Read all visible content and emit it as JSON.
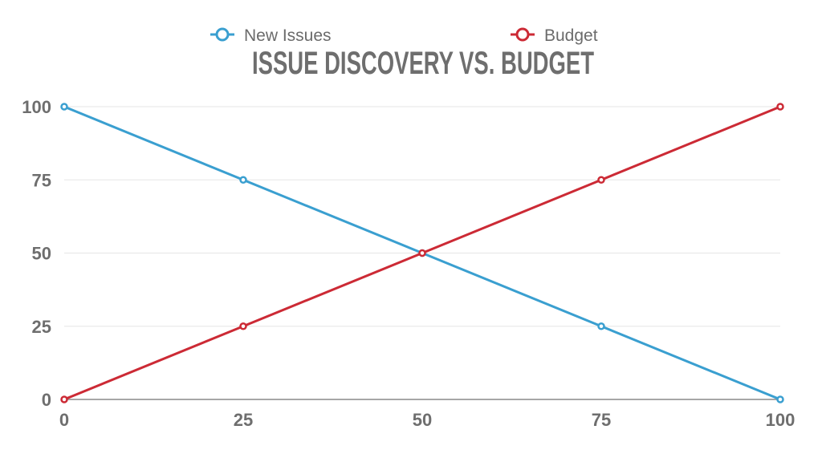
{
  "chart_data": {
    "type": "line",
    "title": "ISSUE DISCOVERY VS. BUDGET",
    "x": [
      0,
      25,
      50,
      75,
      100
    ],
    "series": [
      {
        "name": "New Issues",
        "color": "#3a9fd0",
        "values": [
          100,
          75,
          50,
          25,
          0
        ]
      },
      {
        "name": "Budget",
        "color": "#cc2a35",
        "values": [
          0,
          25,
          50,
          75,
          100
        ]
      }
    ],
    "xlim": [
      0,
      100
    ],
    "ylim": [
      0,
      100
    ],
    "x_ticks": [
      0,
      25,
      50,
      75,
      100
    ],
    "y_ticks": [
      0,
      25,
      50,
      75,
      100
    ],
    "grid": true,
    "legend_position": "top-center",
    "xlabel": "",
    "ylabel": ""
  }
}
